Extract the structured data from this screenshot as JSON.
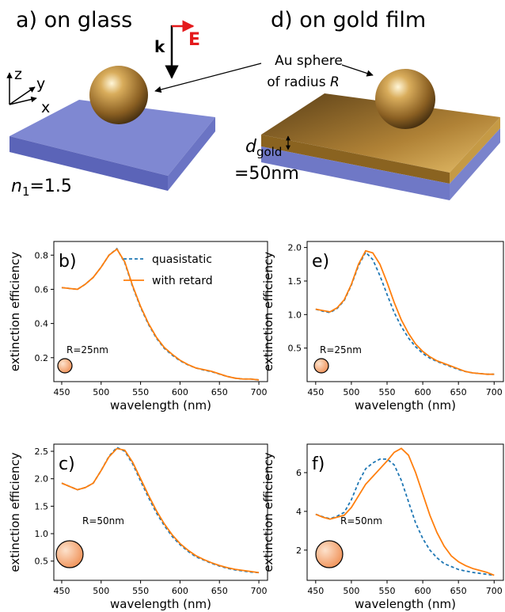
{
  "illustration": {
    "panel_a": "a) on glass",
    "panel_d": "d) on gold film",
    "k_label": "k",
    "e_label": "E",
    "sphere_line1": "Au sphere",
    "sphere_line2": "of radius ",
    "sphere_radius_symbol": "R",
    "axis_z": "z",
    "axis_y": "y",
    "axis_x": "x",
    "n_symbol": "n",
    "n_subscript": "1",
    "n_value": "=1.5",
    "d_symbol": "d",
    "d_subscript": "gold",
    "d_value": "=50nm"
  },
  "chart_data": [
    {
      "type": "line",
      "panel_label": "b)",
      "annotation": "R=25nm",
      "x_label": "wavelength (nm)",
      "y_label": "extinction efficiency",
      "xlim": [
        440,
        711
      ],
      "ylim": [
        0.06,
        0.88
      ],
      "xticks": [
        450,
        500,
        550,
        600,
        650,
        700
      ],
      "yticks": [
        0.2,
        0.4,
        0.6,
        0.8
      ],
      "legend": "upper right",
      "x": [
        450,
        460,
        470,
        480,
        490,
        500,
        510,
        520,
        530,
        540,
        550,
        560,
        570,
        580,
        590,
        600,
        610,
        620,
        630,
        640,
        650,
        660,
        670,
        680,
        690,
        700
      ],
      "series": [
        {
          "name": "quasistatic",
          "color": "#1f77b4",
          "dashed": true,
          "values": [
            0.61,
            0.605,
            0.6,
            0.63,
            0.67,
            0.73,
            0.8,
            0.838,
            0.755,
            0.615,
            0.495,
            0.395,
            0.315,
            0.255,
            0.215,
            0.182,
            0.158,
            0.14,
            0.128,
            0.118,
            0.104,
            0.09,
            0.08,
            0.075,
            0.075,
            0.07
          ]
        },
        {
          "name": "with retard",
          "color": "#ff7f0e",
          "dashed": false,
          "values": [
            0.61,
            0.605,
            0.6,
            0.63,
            0.67,
            0.73,
            0.8,
            0.835,
            0.76,
            0.62,
            0.5,
            0.4,
            0.32,
            0.26,
            0.22,
            0.185,
            0.16,
            0.14,
            0.13,
            0.12,
            0.105,
            0.09,
            0.08,
            0.075,
            0.075,
            0.07
          ]
        }
      ]
    },
    {
      "type": "line",
      "panel_label": "e)",
      "annotation": "R=25nm",
      "x_label": "wavelength (nm)",
      "y_label": "extinction efficiency",
      "xlim": [
        438,
        713
      ],
      "ylim": [
        0.0,
        2.09
      ],
      "xticks": [
        450,
        500,
        550,
        600,
        650,
        700
      ],
      "yticks": [
        0.5,
        {
          "value": 1,
          "label": "1.0"
        },
        1.5,
        {
          "value": 2,
          "label": "2.0"
        }
      ],
      "x": [
        450,
        460,
        470,
        480,
        490,
        500,
        510,
        520,
        530,
        540,
        550,
        560,
        570,
        580,
        590,
        600,
        610,
        620,
        630,
        640,
        650,
        660,
        670,
        680,
        690,
        700
      ],
      "series": [
        {
          "name": "quasistatic",
          "color": "#1f77b4",
          "dashed": true,
          "values": [
            1.08,
            1.05,
            1.03,
            1.09,
            1.21,
            1.44,
            1.73,
            1.93,
            1.82,
            1.58,
            1.3,
            1.03,
            0.82,
            0.65,
            0.52,
            0.42,
            0.35,
            0.3,
            0.26,
            0.22,
            0.18,
            0.15,
            0.13,
            0.12,
            0.11,
            0.11
          ]
        },
        {
          "name": "with retard",
          "color": "#ff7f0e",
          "dashed": false,
          "values": [
            1.08,
            1.06,
            1.04,
            1.1,
            1.22,
            1.45,
            1.75,
            1.95,
            1.92,
            1.75,
            1.48,
            1.18,
            0.92,
            0.72,
            0.56,
            0.45,
            0.37,
            0.31,
            0.27,
            0.23,
            0.19,
            0.15,
            0.13,
            0.12,
            0.11,
            0.11
          ]
        }
      ]
    },
    {
      "type": "line",
      "panel_label": "c)",
      "annotation": "R=50nm",
      "x_label": "wavelength (nm)",
      "y_label": "extinction efficiency",
      "xlim": [
        440,
        711
      ],
      "ylim": [
        0.15,
        2.63
      ],
      "xticks": [
        450,
        500,
        550,
        600,
        650,
        700
      ],
      "yticks": [
        0.5,
        {
          "value": 1,
          "label": "1.0"
        },
        1.5,
        {
          "value": 2,
          "label": "2.0"
        },
        2.5
      ],
      "x": [
        450,
        460,
        470,
        480,
        490,
        500,
        510,
        520,
        530,
        540,
        550,
        560,
        570,
        580,
        590,
        600,
        610,
        620,
        630,
        640,
        650,
        660,
        670,
        680,
        690,
        700
      ],
      "series": [
        {
          "name": "quasistatic",
          "color": "#1f77b4",
          "dashed": true,
          "values": [
            1.92,
            1.86,
            1.8,
            1.84,
            1.92,
            2.15,
            2.41,
            2.57,
            2.5,
            2.27,
            1.96,
            1.66,
            1.38,
            1.15,
            0.95,
            0.8,
            0.68,
            0.58,
            0.52,
            0.46,
            0.41,
            0.37,
            0.34,
            0.32,
            0.3,
            0.29
          ]
        },
        {
          "name": "with retard",
          "color": "#ff7f0e",
          "dashed": false,
          "values": [
            1.92,
            1.86,
            1.8,
            1.84,
            1.92,
            2.15,
            2.4,
            2.55,
            2.52,
            2.3,
            2.0,
            1.7,
            1.42,
            1.18,
            0.98,
            0.82,
            0.7,
            0.6,
            0.53,
            0.47,
            0.42,
            0.38,
            0.35,
            0.33,
            0.31,
            0.29
          ]
        }
      ]
    },
    {
      "type": "line",
      "panel_label": "f)",
      "annotation": "R=50nm",
      "x_label": "wavelength (nm)",
      "y_label": "extinction efficiency",
      "xlim": [
        438,
        713
      ],
      "ylim": [
        0.44,
        7.47
      ],
      "xticks": [
        450,
        500,
        550,
        600,
        650,
        700
      ],
      "yticks": [
        2,
        4,
        6
      ],
      "x": [
        450,
        460,
        470,
        480,
        490,
        500,
        510,
        520,
        530,
        540,
        550,
        560,
        570,
        580,
        590,
        600,
        610,
        620,
        630,
        640,
        650,
        660,
        670,
        680,
        690,
        700
      ],
      "series": [
        {
          "name": "quasistatic",
          "color": "#1f77b4",
          "dashed": true,
          "values": [
            3.85,
            3.72,
            3.62,
            3.75,
            3.95,
            4.6,
            5.5,
            6.2,
            6.5,
            6.7,
            6.7,
            6.4,
            5.6,
            4.5,
            3.4,
            2.6,
            2.0,
            1.6,
            1.3,
            1.15,
            1.0,
            0.92,
            0.85,
            0.8,
            0.75,
            0.7
          ]
        },
        {
          "name": "with retard",
          "color": "#ff7f0e",
          "dashed": false,
          "values": [
            3.85,
            3.7,
            3.6,
            3.7,
            3.8,
            4.2,
            4.8,
            5.4,
            5.8,
            6.2,
            6.6,
            7.05,
            7.25,
            6.9,
            6.0,
            4.9,
            3.8,
            2.9,
            2.2,
            1.7,
            1.4,
            1.2,
            1.05,
            0.95,
            0.85,
            0.7
          ]
        }
      ]
    }
  ]
}
